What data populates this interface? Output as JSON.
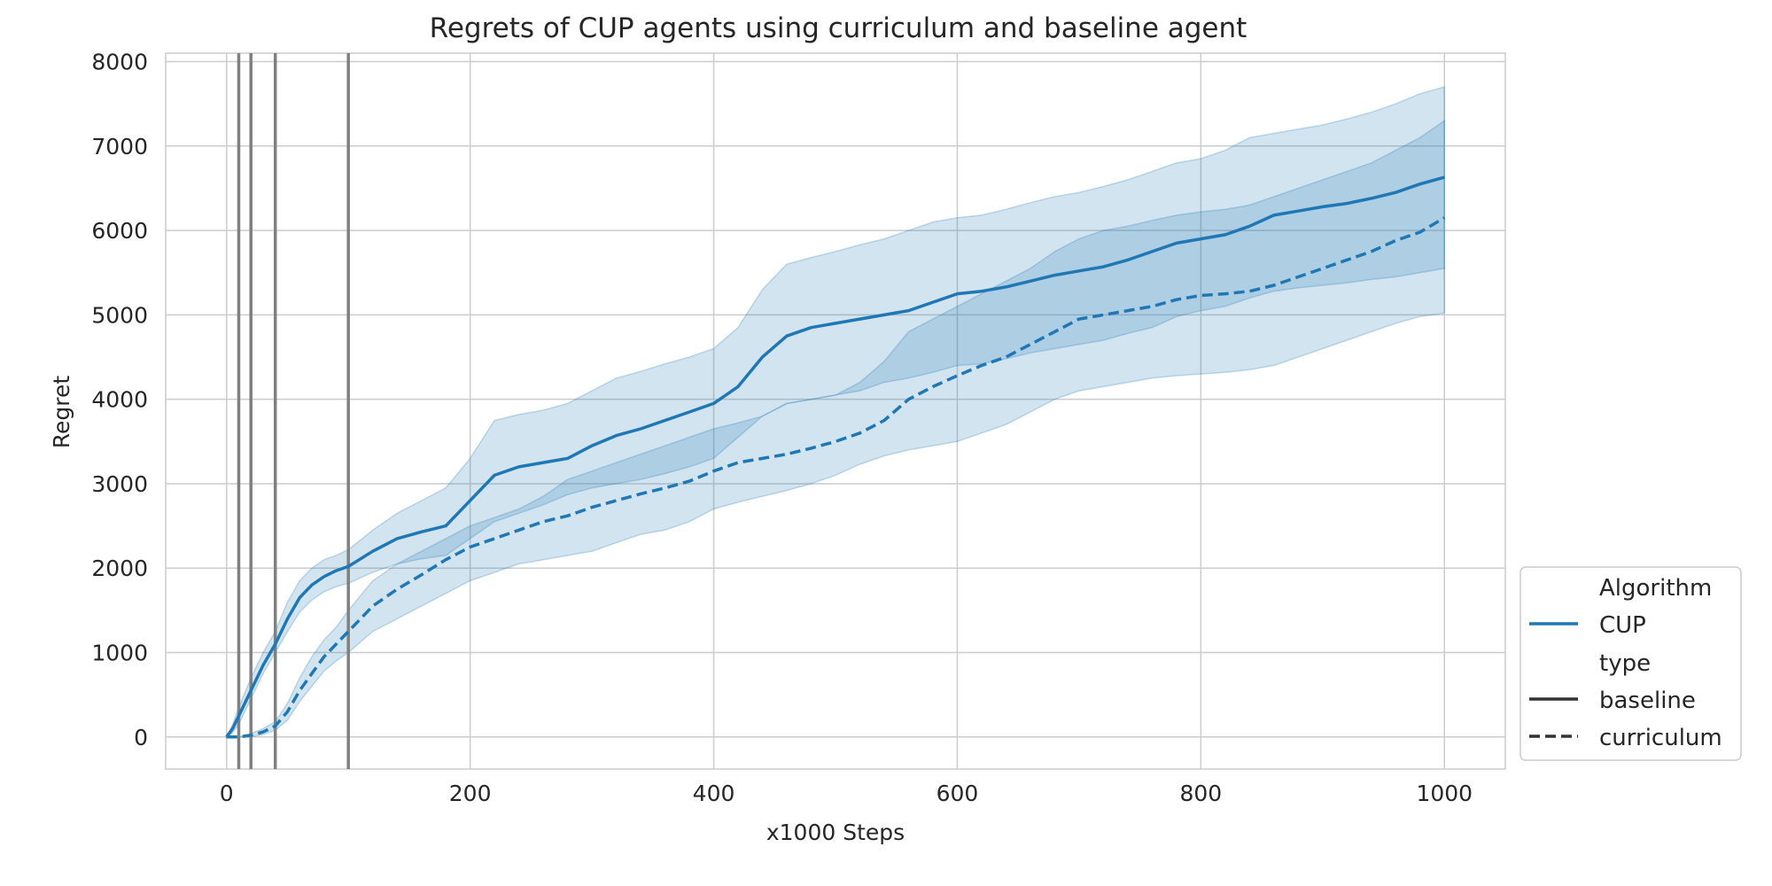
{
  "chart_data": {
    "type": "line",
    "title": "Regrets of CUP agents using curriculum and baseline agent",
    "xlabel": "x1000 Steps",
    "ylabel": "Regret",
    "xlim": [
      -50,
      1050
    ],
    "ylim": [
      -380,
      8100
    ],
    "x_ticks": [
      "0",
      "200",
      "400",
      "600",
      "800",
      "1000"
    ],
    "y_ticks": [
      "0",
      "1000",
      "2000",
      "3000",
      "4000",
      "5000",
      "6000",
      "7000",
      "8000"
    ],
    "grid": true,
    "vertical_markers": [
      10,
      20,
      40,
      100
    ],
    "legend": {
      "placement": "outside-bottom-right",
      "sections": [
        {
          "title": "Algorithm",
          "entries": [
            {
              "label": "CUP",
              "style": "solid",
              "color": "#1f77b4"
            }
          ]
        },
        {
          "title": "type",
          "entries": [
            {
              "label": "baseline",
              "style": "solid",
              "color": "#333333"
            },
            {
              "label": "curriculum",
              "style": "dashed",
              "color": "#333333"
            }
          ]
        }
      ]
    },
    "colors": {
      "series": "#1f77b4",
      "band": "#1f77b4",
      "marker": "#808080",
      "grid": "#cccccc"
    },
    "series": [
      {
        "name": "baseline",
        "style": "solid",
        "x": [
          0,
          5,
          10,
          20,
          30,
          40,
          50,
          60,
          70,
          80,
          90,
          100,
          120,
          140,
          160,
          180,
          200,
          220,
          240,
          260,
          280,
          300,
          320,
          340,
          360,
          380,
          400,
          420,
          440,
          460,
          480,
          500,
          520,
          540,
          560,
          580,
          600,
          620,
          640,
          660,
          680,
          700,
          720,
          740,
          760,
          780,
          800,
          820,
          840,
          860,
          880,
          900,
          920,
          940,
          960,
          980,
          1000
        ],
        "y": [
          0,
          100,
          250,
          550,
          850,
          1100,
          1400,
          1650,
          1800,
          1900,
          1970,
          2020,
          2200,
          2350,
          2430,
          2500,
          2800,
          3100,
          3200,
          3250,
          3300,
          3450,
          3570,
          3650,
          3750,
          3850,
          3950,
          4150,
          4500,
          4750,
          4850,
          4900,
          4950,
          5000,
          5050,
          5150,
          5250,
          5280,
          5330,
          5400,
          5470,
          5520,
          5570,
          5650,
          5750,
          5850,
          5900,
          5950,
          6050,
          6180,
          6230,
          6280,
          6320,
          6380,
          6450,
          6550,
          6630
        ],
        "lower": [
          0,
          50,
          150,
          450,
          750,
          1000,
          1250,
          1480,
          1620,
          1720,
          1780,
          1820,
          1950,
          2050,
          2110,
          2150,
          2350,
          2550,
          2650,
          2750,
          2870,
          2950,
          3000,
          3050,
          3120,
          3200,
          3300,
          3550,
          3800,
          3950,
          4000,
          4050,
          4100,
          4200,
          4250,
          4320,
          4400,
          4420,
          4480,
          4550,
          4600,
          4650,
          4700,
          4780,
          4850,
          4980,
          5050,
          5100,
          5200,
          5280,
          5320,
          5350,
          5380,
          5420,
          5450,
          5500,
          5550
        ],
        "upper": [
          0,
          150,
          350,
          700,
          1000,
          1250,
          1600,
          1850,
          2000,
          2100,
          2150,
          2220,
          2450,
          2650,
          2800,
          2950,
          3300,
          3750,
          3820,
          3870,
          3950,
          4100,
          4250,
          4330,
          4420,
          4500,
          4600,
          4850,
          5300,
          5600,
          5680,
          5750,
          5830,
          5900,
          6000,
          6100,
          6150,
          6180,
          6250,
          6330,
          6400,
          6450,
          6520,
          6600,
          6700,
          6800,
          6850,
          6950,
          7100,
          7150,
          7200,
          7250,
          7320,
          7400,
          7500,
          7620,
          7700
        ]
      },
      {
        "name": "curriculum",
        "style": "dashed",
        "x": [
          0,
          10,
          20,
          30,
          40,
          50,
          60,
          70,
          80,
          90,
          100,
          120,
          140,
          160,
          180,
          200,
          220,
          240,
          260,
          280,
          300,
          320,
          340,
          360,
          380,
          400,
          420,
          440,
          460,
          480,
          500,
          520,
          540,
          560,
          580,
          600,
          620,
          640,
          660,
          680,
          700,
          720,
          740,
          760,
          780,
          800,
          820,
          840,
          860,
          880,
          900,
          920,
          940,
          960,
          980,
          1000
        ],
        "y": [
          0,
          0,
          20,
          60,
          130,
          300,
          550,
          750,
          950,
          1100,
          1250,
          1550,
          1750,
          1920,
          2100,
          2250,
          2350,
          2450,
          2550,
          2620,
          2720,
          2800,
          2880,
          2950,
          3030,
          3150,
          3250,
          3300,
          3350,
          3420,
          3500,
          3600,
          3750,
          4000,
          4150,
          4280,
          4400,
          4500,
          4650,
          4800,
          4950,
          5000,
          5050,
          5100,
          5180,
          5230,
          5250,
          5280,
          5350,
          5450,
          5550,
          5650,
          5750,
          5880,
          5980,
          6150
        ],
        "lower": [
          0,
          0,
          0,
          30,
          80,
          200,
          420,
          600,
          780,
          900,
          1000,
          1250,
          1400,
          1550,
          1700,
          1850,
          1950,
          2050,
          2100,
          2150,
          2200,
          2300,
          2400,
          2450,
          2550,
          2700,
          2780,
          2850,
          2920,
          3000,
          3100,
          3230,
          3330,
          3400,
          3450,
          3500,
          3600,
          3700,
          3850,
          4000,
          4100,
          4150,
          4200,
          4250,
          4280,
          4300,
          4320,
          4350,
          4400,
          4500,
          4600,
          4700,
          4800,
          4900,
          4980,
          5020
        ],
        "upper": [
          0,
          0,
          40,
          100,
          180,
          400,
          700,
          950,
          1150,
          1300,
          1500,
          1850,
          2050,
          2200,
          2350,
          2500,
          2600,
          2700,
          2850,
          3050,
          3150,
          3250,
          3350,
          3450,
          3550,
          3650,
          3720,
          3800,
          3950,
          4000,
          4050,
          4200,
          4450,
          4800,
          4950,
          5100,
          5250,
          5400,
          5550,
          5750,
          5900,
          6000,
          6050,
          6120,
          6180,
          6220,
          6250,
          6300,
          6400,
          6500,
          6600,
          6700,
          6800,
          6950,
          7100,
          7300
        ]
      }
    ]
  }
}
